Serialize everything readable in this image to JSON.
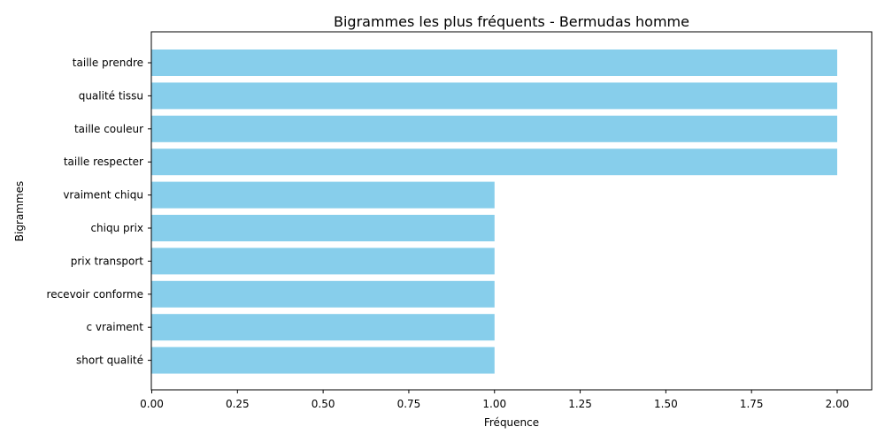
{
  "chart_data": {
    "type": "bar",
    "orientation": "horizontal",
    "title": "Bigrammes les plus fréquents - Bermudas homme",
    "xlabel": "Fréquence",
    "ylabel": "Bigrammes",
    "categories": [
      "taille prendre",
      "qualité tissu",
      "taille couleur",
      "taille respecter",
      "vraiment chiqu",
      "chiqu prix",
      "prix transport",
      "recevoir conforme",
      "c vraiment",
      "short qualité"
    ],
    "values": [
      2,
      2,
      2,
      2,
      1,
      1,
      1,
      1,
      1,
      1
    ],
    "xlim": [
      0,
      2.1
    ],
    "xticks": [
      "0.00",
      "0.25",
      "0.50",
      "0.75",
      "1.00",
      "1.25",
      "1.50",
      "1.75",
      "2.00"
    ],
    "bar_color": "#87ceeb",
    "grid": false,
    "legend": "none"
  }
}
